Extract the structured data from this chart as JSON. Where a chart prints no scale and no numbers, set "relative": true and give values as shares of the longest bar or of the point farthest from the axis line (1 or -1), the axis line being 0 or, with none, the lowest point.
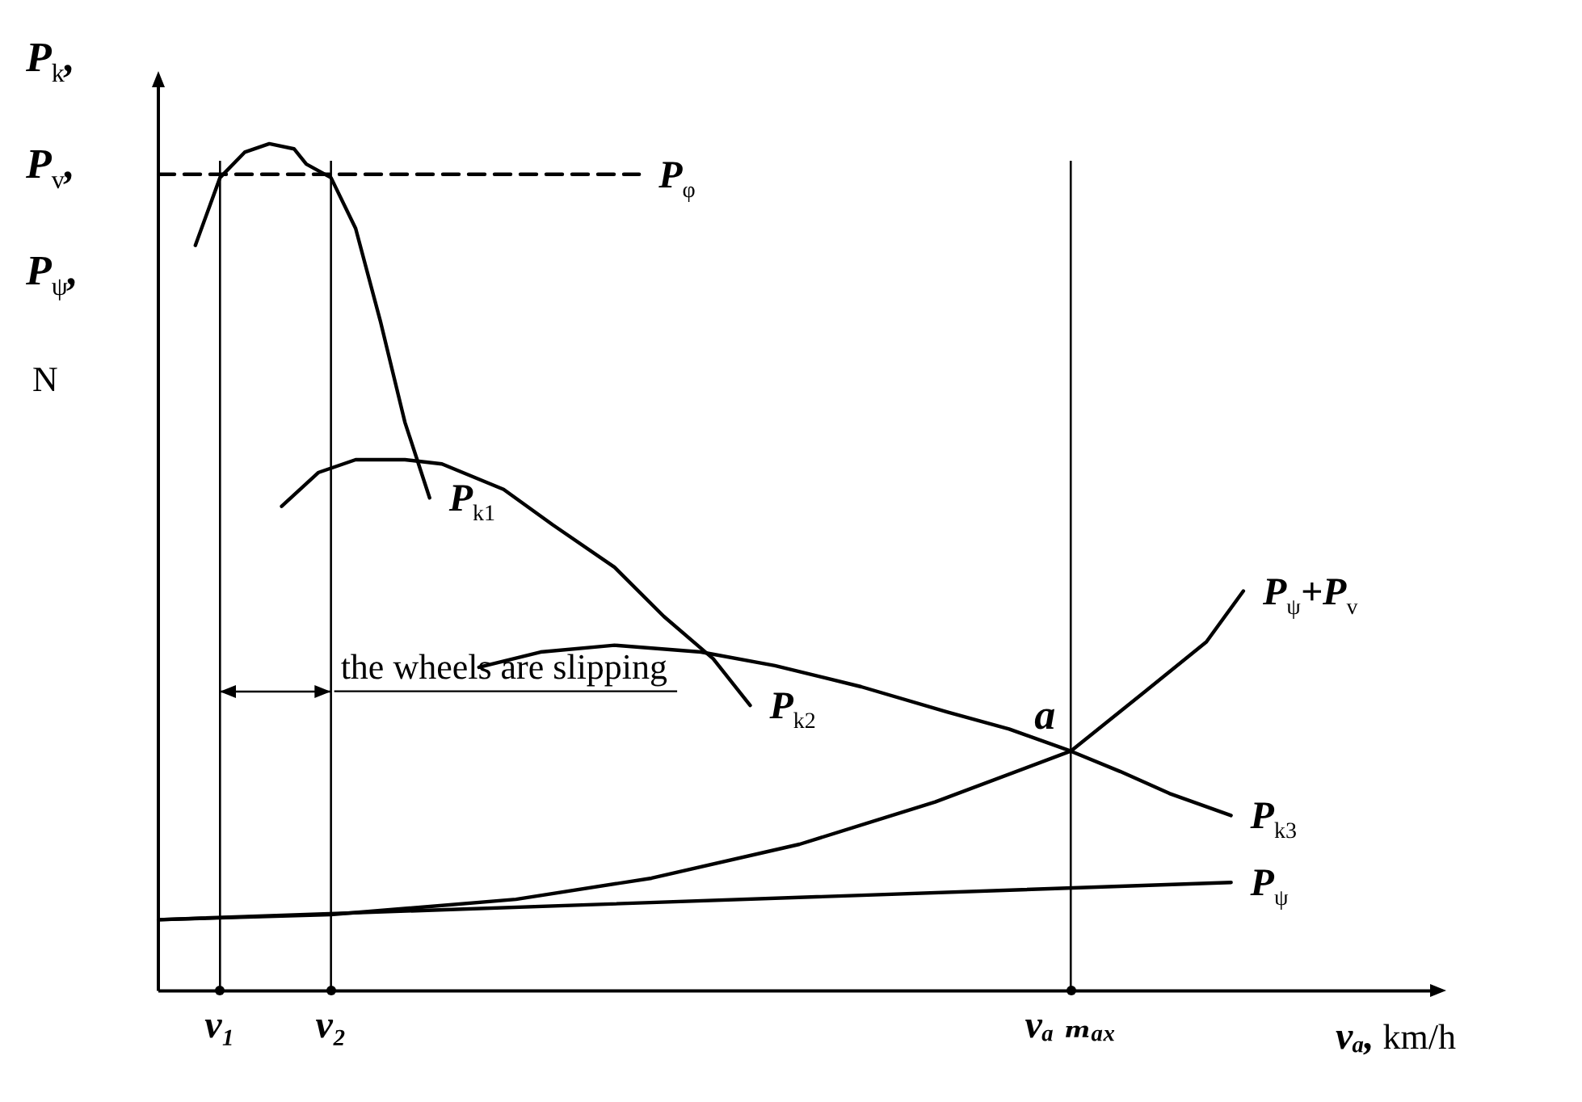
{
  "chart_data": {
    "type": "line",
    "relative": true,
    "ylabel": "P$_{k}$, P$_{v}$, P$_{ψ}$, N",
    "xlabel": "vₐ, km/h",
    "categories": [
      null,
      null,
      null,
      null,
      null,
      "v₁",
      null,
      null,
      null,
      null,
      null,
      null,
      null,
      null,
      "v₂",
      null,
      null,
      null,
      null,
      null,
      null,
      null,
      null,
      null,
      null,
      null,
      null,
      null,
      null,
      null,
      null,
      null,
      null,
      null,
      null,
      null,
      null,
      null,
      null,
      null,
      null,
      null,
      null,
      null,
      null,
      null,
      null,
      null,
      null,
      null,
      null,
      null,
      null,
      null,
      null,
      null,
      null,
      null,
      null,
      null,
      null,
      null,
      null,
      null,
      null,
      null,
      null,
      null,
      null,
      null,
      null,
      null,
      null,
      null,
      "vₐ ₘₐₓ",
      null,
      null,
      null,
      null,
      null,
      null,
      null,
      null,
      null,
      null,
      null,
      null,
      null,
      null,
      null,
      null,
      null,
      null,
      null,
      null,
      null,
      null,
      null,
      null,
      null,
      null
    ],
    "tick_labels": "x",
    "legend": false,
    "grid": false,
    "marker": "none",
    "ref_lines": [
      {
        "axis": "x",
        "value": "v₁"
      },
      {
        "axis": "x",
        "value": "v₂"
      },
      {
        "axis": "x",
        "value": "vₐ ₘₐₓ"
      }
    ],
    "annotations": [
      {
        "text": "a",
        "x": "vₐ ₘₐₓ",
        "y": 0.283
      },
      "the wheels are slipping"
    ],
    "series": [
      {
        "name": "P$_{φ}$",
        "color": "#000000",
        "line_style": "dashed",
        "values": [
          0.964,
          null,
          null,
          null,
          null,
          null,
          null,
          null,
          null,
          null,
          null,
          null,
          null,
          null,
          null,
          null,
          null,
          null,
          null,
          null,
          null,
          null,
          null,
          null,
          null,
          null,
          null,
          null,
          null,
          null,
          null,
          null,
          null,
          null,
          null,
          null,
          null,
          null,
          null,
          0.964,
          null,
          null,
          null,
          null,
          null,
          null,
          null,
          null,
          null,
          null,
          null,
          null,
          null,
          null,
          null,
          null,
          null,
          null,
          null,
          null,
          null,
          null,
          null,
          null,
          null,
          null,
          null,
          null,
          null,
          null,
          null,
          null,
          null,
          null,
          null,
          null,
          null,
          null,
          null,
          null,
          null,
          null,
          null,
          null,
          null,
          null,
          null,
          null,
          null,
          null,
          null,
          null,
          null,
          null,
          null,
          null,
          null,
          null,
          null,
          null,
          null
        ]
      },
      {
        "name": "P$_{k1}$",
        "color": "#000000",
        "values": [
          null,
          null,
          null,
          0.88,
          null,
          0.96,
          null,
          0.99,
          null,
          1,
          null,
          0.994,
          0.976,
          null,
          0.96,
          null,
          0.9,
          null,
          0.791,
          null,
          0.671,
          null,
          0.582,
          null,
          null,
          null,
          null,
          null,
          null,
          null,
          null,
          null,
          null,
          null,
          null,
          null,
          null,
          null,
          null,
          null,
          null,
          null,
          null,
          null,
          null,
          null,
          null,
          null,
          null,
          null,
          null,
          null,
          null,
          null,
          null,
          null,
          null,
          null,
          null,
          null,
          null,
          null,
          null,
          null,
          null,
          null,
          null,
          null,
          null,
          null,
          null,
          null,
          null,
          null,
          null,
          null,
          null,
          null,
          null,
          null,
          null,
          null,
          null,
          null,
          null,
          null,
          null,
          null,
          null,
          null,
          null,
          null,
          null,
          null,
          null,
          null,
          null,
          null,
          null,
          null,
          null
        ]
      },
      {
        "name": "P$_{k2}$",
        "color": "#000000",
        "values": [
          null,
          null,
          null,
          null,
          null,
          null,
          null,
          null,
          null,
          null,
          0.572,
          null,
          null,
          0.612,
          null,
          null,
          0.627,
          null,
          null,
          null,
          0.627,
          null,
          null,
          0.622,
          null,
          null,
          null,
          null,
          0.592,
          null,
          null,
          null,
          0.55,
          null,
          null,
          null,
          null,
          0.5,
          null,
          null,
          null,
          0.442,
          null,
          null,
          null,
          0.392,
          null,
          null,
          0.337,
          null,
          null,
          null,
          null,
          null,
          null,
          null,
          null,
          null,
          null,
          null,
          null,
          null,
          null,
          null,
          null,
          null,
          null,
          null,
          null,
          null,
          null,
          null,
          null,
          null,
          null,
          null,
          null,
          null,
          null,
          null,
          null,
          null,
          null,
          null,
          null,
          null,
          null,
          null,
          null,
          null,
          null,
          null,
          null,
          null,
          null,
          null,
          null,
          null,
          null,
          null,
          null
        ]
      },
      {
        "name": "P$_{k3}$",
        "color": "#000000",
        "values": [
          null,
          null,
          null,
          null,
          null,
          null,
          null,
          null,
          null,
          null,
          null,
          null,
          null,
          null,
          null,
          null,
          null,
          null,
          null,
          null,
          null,
          null,
          null,
          null,
          null,
          null,
          0.382,
          null,
          null,
          null,
          null,
          0.4,
          null,
          null,
          null,
          null,
          null,
          0.408,
          null,
          null,
          null,
          null,
          null,
          null,
          0.4,
          null,
          null,
          null,
          null,
          null,
          0.384,
          null,
          null,
          null,
          null,
          null,
          null,
          0.359,
          null,
          null,
          null,
          null,
          null,
          null,
          0.329,
          null,
          null,
          null,
          null,
          0.309,
          null,
          null,
          null,
          null,
          0.283,
          null,
          null,
          null,
          0.259,
          null,
          null,
          null,
          0.233,
          null,
          null,
          null,
          null,
          0.207,
          null,
          null,
          null,
          null,
          null,
          null,
          null,
          null,
          null,
          null,
          null,
          null,
          null
        ]
      },
      {
        "name": "P$_{ψ}$+P$_{v}$",
        "color": "#000000",
        "values": [
          0.084,
          null,
          null,
          null,
          null,
          null,
          null,
          null,
          null,
          null,
          null,
          null,
          null,
          null,
          0.09,
          null,
          null,
          null,
          null,
          null,
          null,
          null,
          null,
          null,
          null,
          null,
          null,
          null,
          null,
          0.108,
          null,
          null,
          null,
          null,
          null,
          null,
          null,
          null,
          null,
          null,
          0.133,
          null,
          null,
          null,
          null,
          null,
          null,
          null,
          null,
          null,
          null,
          null,
          0.173,
          null,
          null,
          null,
          null,
          null,
          null,
          null,
          null,
          null,
          null,
          0.223,
          null,
          null,
          null,
          null,
          null,
          null,
          null,
          null,
          null,
          null,
          0.283,
          null,
          null,
          null,
          null,
          null,
          0.353,
          null,
          null,
          null,
          null,
          0.412,
          null,
          null,
          0.472,
          null,
          null,
          null,
          null,
          null,
          null,
          null,
          null,
          null,
          null,
          null,
          null
        ]
      },
      {
        "name": "P$_{ψ}$",
        "color": "#000000",
        "values": [
          0.084,
          null,
          null,
          null,
          null,
          null,
          null,
          null,
          null,
          null,
          null,
          null,
          null,
          null,
          null,
          null,
          null,
          null,
          null,
          null,
          null,
          null,
          null,
          null,
          null,
          null,
          null,
          null,
          null,
          null,
          null,
          null,
          null,
          null,
          null,
          null,
          null,
          null,
          null,
          null,
          null,
          null,
          null,
          null,
          null,
          null,
          null,
          null,
          null,
          null,
          null,
          null,
          null,
          null,
          null,
          null,
          null,
          null,
          null,
          null,
          null,
          null,
          null,
          null,
          null,
          null,
          null,
          null,
          null,
          null,
          null,
          null,
          null,
          null,
          null,
          null,
          null,
          null,
          null,
          null,
          null,
          null,
          null,
          null,
          null,
          null,
          null,
          0.128,
          null,
          null,
          null,
          null,
          null,
          null,
          null,
          null,
          null,
          null,
          null,
          null,
          null
        ]
      }
    ]
  }
}
